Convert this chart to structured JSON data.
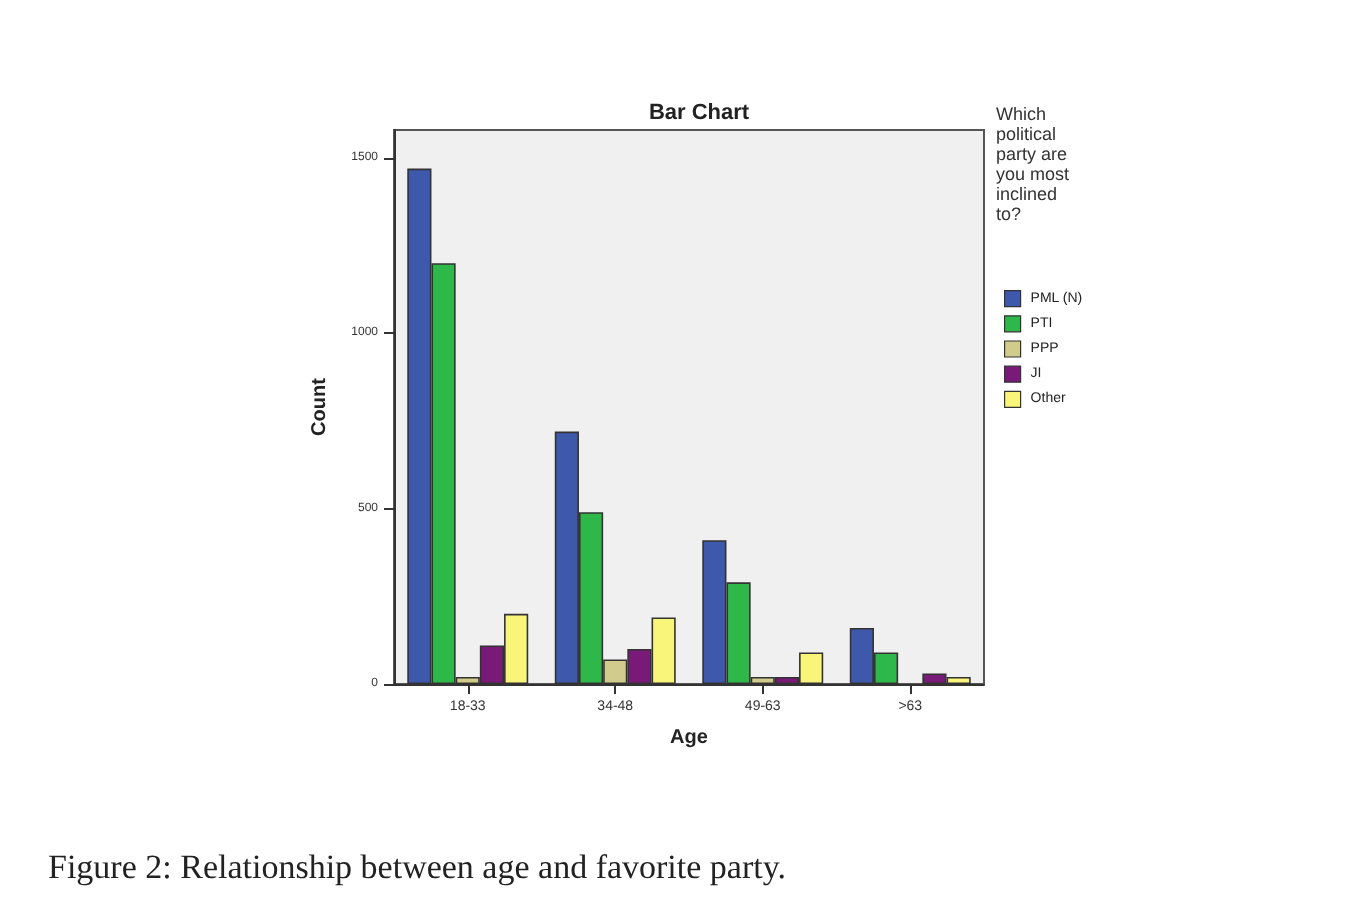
{
  "chart_data": {
    "type": "bar",
    "title": "Bar Chart",
    "xlabel": "Age",
    "ylabel": "Count",
    "legend_title": "Which political party are you most inclined to?",
    "categories": [
      "18-33",
      "34-48",
      "49-63",
      ">63"
    ],
    "series": [
      {
        "name": "PML (N)",
        "color": "#3e58ac",
        "values": [
          1470,
          720,
          410,
          160
        ]
      },
      {
        "name": "PTI",
        "color": "#2eb84a",
        "values": [
          1200,
          490,
          290,
          90
        ]
      },
      {
        "name": "PPP",
        "color": "#d2cc8c",
        "values": [
          20,
          70,
          20,
          null
        ]
      },
      {
        "name": "JI",
        "color": "#7a1a78",
        "values": [
          110,
          100,
          20,
          30
        ]
      },
      {
        "name": "Other",
        "color": "#f8f57a",
        "values": [
          200,
          190,
          90,
          20
        ]
      }
    ],
    "ylim": [
      0,
      1580
    ],
    "yticks": [
      0,
      500,
      1000,
      1500
    ],
    "grid": false,
    "legend": "right",
    "annotations": [
      "Figure 2: Relationship between age and favorite party."
    ]
  }
}
